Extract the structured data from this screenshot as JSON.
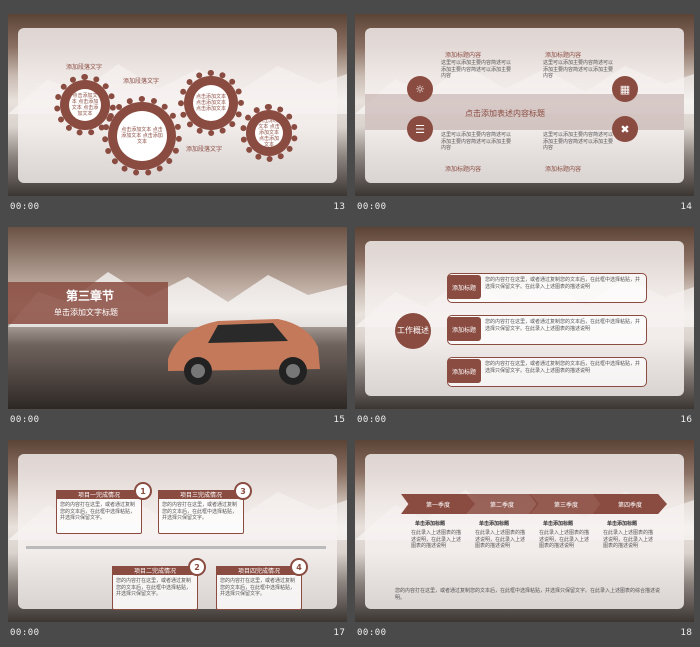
{
  "colors": {
    "accent": "#8a4b40",
    "background": "#4a4a4a"
  },
  "slides": [
    {
      "number": "13",
      "time": "00:00",
      "labels": [
        "添加段落文字",
        "添加段落文字",
        "添加段落文字"
      ],
      "gear_text": "点击添加文本 点击添加文本 点击添加文本"
    },
    {
      "number": "14",
      "time": "00:00",
      "title": "点击添加表述内容标题",
      "labels": [
        "添加标题内容",
        "添加标题内容",
        "添加标题内容",
        "添加标题内容"
      ],
      "body": "这里可以添加主要内容简述可以添加主要内容简述可以添加主要内容"
    },
    {
      "number": "15",
      "time": "00:00",
      "chapter": "第三章节",
      "subtitle": "单击添加文字标题"
    },
    {
      "number": "16",
      "time": "00:00",
      "center": "工作概述",
      "tags": [
        "添加标题",
        "添加标题",
        "添加标题"
      ],
      "body": "您的内容打在这里，或者通过复制您的文本后，在此框中选择粘贴，并选择只保留文字。在此录入上述图表的描述说明"
    },
    {
      "number": "17",
      "time": "00:00",
      "items": [
        {
          "n": "1",
          "title": "项目一完成情况"
        },
        {
          "n": "2",
          "title": "项目二完成情况"
        },
        {
          "n": "3",
          "title": "项目三完成情况"
        },
        {
          "n": "4",
          "title": "项目四完成情况"
        }
      ],
      "body": "您的内容打在这里，或者通过复制您的文本后，在此框中选择粘贴，并选择只保留文字。"
    },
    {
      "number": "18",
      "time": "00:00",
      "quarters": [
        "第一季度",
        "第二季度",
        "第三季度",
        "第四季度"
      ],
      "sub": "单击添加标题",
      "desc": "在此录入上述图表的描述说明，在此录入上述图表的描述说明",
      "footer_text": "您的内容打在这里，或者通过复制您的文本后，在此框中选择粘贴，并选择只保留文字。在此录入上述图表的综合描述说明。"
    }
  ]
}
